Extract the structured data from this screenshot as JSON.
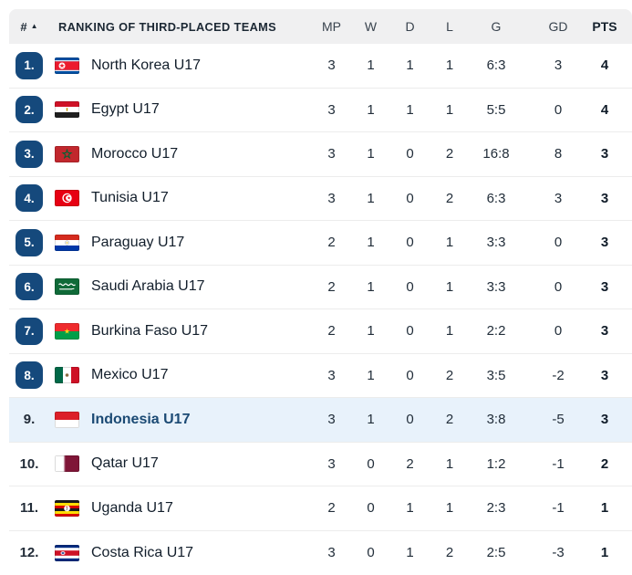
{
  "header": {
    "rank_label": "#",
    "sort_icon": "▲",
    "title": "RANKING OF THIRD-PLACED TEAMS",
    "columns": {
      "mp": "MP",
      "w": "W",
      "d": "D",
      "l": "L",
      "g": "G",
      "gd": "GD",
      "pts": "PTS"
    }
  },
  "colors": {
    "rank_badge": "#15497c",
    "highlight_row": "#e8f2fb",
    "header_bg": "#f0f0f1",
    "divider": "#ececec"
  },
  "rows": [
    {
      "rank": "1.",
      "team": "North Korea U17",
      "flag": "north-korea",
      "mp": "3",
      "w": "1",
      "d": "1",
      "l": "1",
      "g": "6:3",
      "gd": "3",
      "pts": "4",
      "badge": true,
      "highlighted": false
    },
    {
      "rank": "2.",
      "team": "Egypt U17",
      "flag": "egypt",
      "mp": "3",
      "w": "1",
      "d": "1",
      "l": "1",
      "g": "5:5",
      "gd": "0",
      "pts": "4",
      "badge": true,
      "highlighted": false
    },
    {
      "rank": "3.",
      "team": "Morocco U17",
      "flag": "morocco",
      "mp": "3",
      "w": "1",
      "d": "0",
      "l": "2",
      "g": "16:8",
      "gd": "8",
      "pts": "3",
      "badge": true,
      "highlighted": false
    },
    {
      "rank": "4.",
      "team": "Tunisia U17",
      "flag": "tunisia",
      "mp": "3",
      "w": "1",
      "d": "0",
      "l": "2",
      "g": "6:3",
      "gd": "3",
      "pts": "3",
      "badge": true,
      "highlighted": false
    },
    {
      "rank": "5.",
      "team": "Paraguay U17",
      "flag": "paraguay",
      "mp": "2",
      "w": "1",
      "d": "0",
      "l": "1",
      "g": "3:3",
      "gd": "0",
      "pts": "3",
      "badge": true,
      "highlighted": false
    },
    {
      "rank": "6.",
      "team": "Saudi Arabia U17",
      "flag": "saudi-arabia",
      "mp": "2",
      "w": "1",
      "d": "0",
      "l": "1",
      "g": "3:3",
      "gd": "0",
      "pts": "3",
      "badge": true,
      "highlighted": false
    },
    {
      "rank": "7.",
      "team": "Burkina Faso U17",
      "flag": "burkina-faso",
      "mp": "2",
      "w": "1",
      "d": "0",
      "l": "1",
      "g": "2:2",
      "gd": "0",
      "pts": "3",
      "badge": true,
      "highlighted": false
    },
    {
      "rank": "8.",
      "team": "Mexico U17",
      "flag": "mexico",
      "mp": "3",
      "w": "1",
      "d": "0",
      "l": "2",
      "g": "3:5",
      "gd": "-2",
      "pts": "3",
      "badge": true,
      "highlighted": false
    },
    {
      "rank": "9.",
      "team": "Indonesia U17",
      "flag": "indonesia",
      "mp": "3",
      "w": "1",
      "d": "0",
      "l": "2",
      "g": "3:8",
      "gd": "-5",
      "pts": "3",
      "badge": false,
      "highlighted": true
    },
    {
      "rank": "10.",
      "team": "Qatar U17",
      "flag": "qatar",
      "mp": "3",
      "w": "0",
      "d": "2",
      "l": "1",
      "g": "1:2",
      "gd": "-1",
      "pts": "2",
      "badge": false,
      "highlighted": false
    },
    {
      "rank": "11.",
      "team": "Uganda U17",
      "flag": "uganda",
      "mp": "2",
      "w": "0",
      "d": "1",
      "l": "1",
      "g": "2:3",
      "gd": "-1",
      "pts": "1",
      "badge": false,
      "highlighted": false
    },
    {
      "rank": "12.",
      "team": "Costa Rica U17",
      "flag": "costa-rica",
      "mp": "3",
      "w": "0",
      "d": "1",
      "l": "2",
      "g": "2:5",
      "gd": "-3",
      "pts": "1",
      "badge": false,
      "highlighted": false
    }
  ]
}
